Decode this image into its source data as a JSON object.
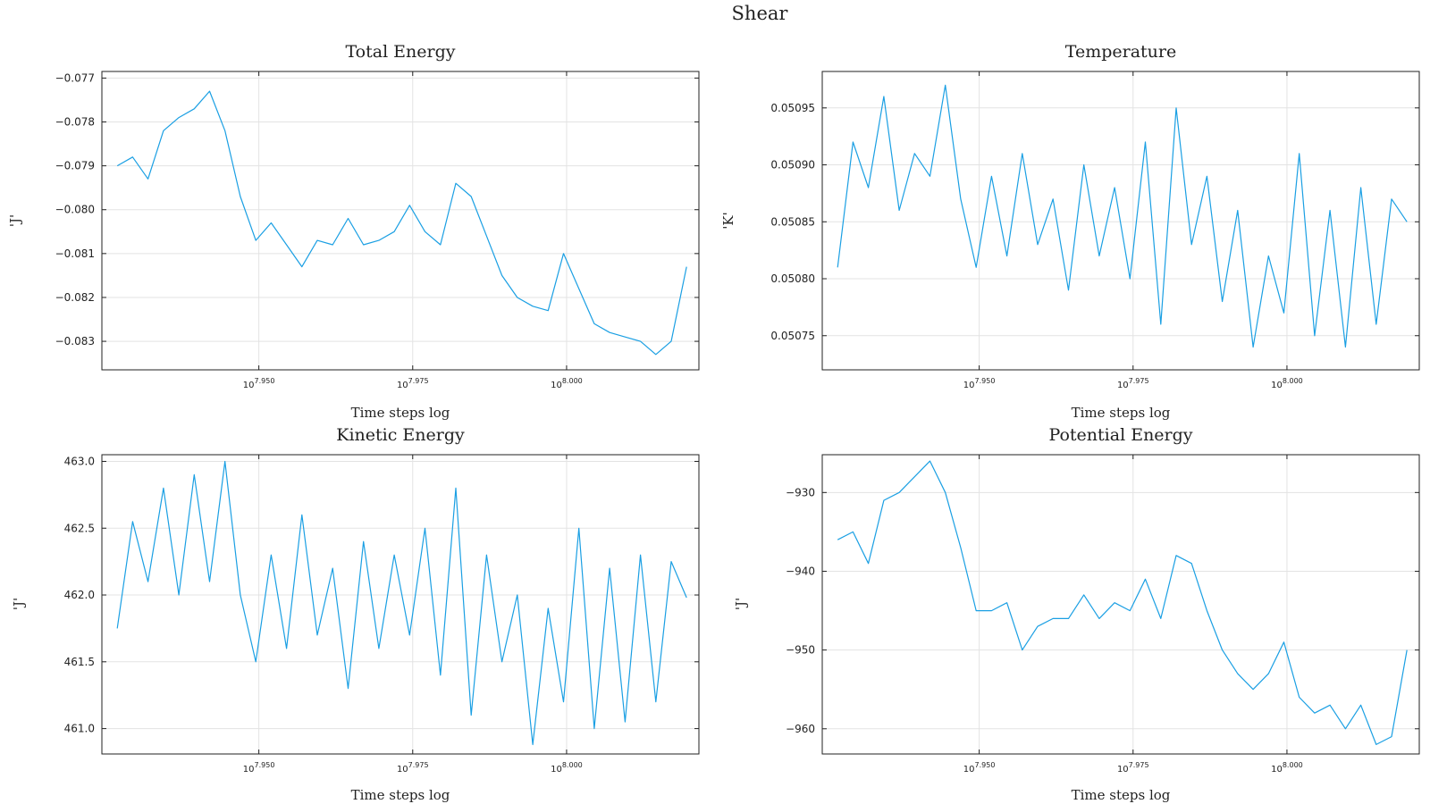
{
  "figure": {
    "title": "Shear"
  },
  "colors": {
    "series": "#1a9fe3",
    "grid": "#e3e3e3",
    "frame": "#222222"
  },
  "chart_data": [
    {
      "type": "line",
      "title": "Total Energy",
      "xlabel": "Time steps log",
      "ylabel": "'J'",
      "x_scale": "log10",
      "x_tick_labels": [
        [
          "10",
          "7.950"
        ],
        [
          "10",
          "7.975"
        ],
        [
          "10",
          "8.000"
        ]
      ],
      "x_ticks_log10": [
        7.95,
        7.975,
        8.0
      ],
      "xlim_log10": [
        7.9245,
        8.0215
      ],
      "y_ticks": [
        -0.077,
        -0.078,
        -0.079,
        -0.08,
        -0.081,
        -0.082,
        -0.083
      ],
      "y_tick_labels": [
        "-0.077",
        "-0.078",
        "-0.079",
        "-0.080",
        "-0.081",
        "-0.082",
        "-0.083"
      ],
      "ylim": [
        -0.08365,
        -0.07685
      ],
      "grid": true,
      "series": [
        {
          "x_log10": [
            7.927,
            7.9295,
            7.932,
            7.9345,
            7.937,
            7.9395,
            7.942,
            7.9445,
            7.947,
            7.9495,
            7.952,
            7.9545,
            7.957,
            7.9595,
            7.962,
            7.9645,
            7.967,
            7.9695,
            7.972,
            7.9745,
            7.977,
            7.9795,
            7.982,
            7.9845,
            7.987,
            7.9895,
            7.992,
            7.9945,
            7.997,
            7.9995,
            8.002,
            8.0045,
            8.007,
            8.0095,
            8.012,
            8.0145,
            8.017,
            8.0195
          ],
          "y": [
            -0.079,
            -0.0788,
            -0.0793,
            -0.0782,
            -0.0779,
            -0.0777,
            -0.0773,
            -0.0782,
            -0.0797,
            -0.0807,
            -0.0803,
            -0.0808,
            -0.0813,
            -0.0807,
            -0.0808,
            -0.0802,
            -0.0808,
            -0.0807,
            -0.0805,
            -0.0799,
            -0.0805,
            -0.0808,
            -0.0794,
            -0.0797,
            -0.0806,
            -0.0815,
            -0.082,
            -0.0822,
            -0.0823,
            -0.081,
            -0.0818,
            -0.0826,
            -0.0828,
            -0.0829,
            -0.083,
            -0.0833,
            -0.083,
            -0.0813
          ]
        }
      ]
    },
    {
      "type": "line",
      "title": "Temperature",
      "xlabel": "Time steps log",
      "ylabel": "'K'",
      "x_scale": "log10",
      "x_tick_labels": [
        [
          "10",
          "7.950"
        ],
        [
          "10",
          "7.975"
        ],
        [
          "10",
          "8.000"
        ]
      ],
      "x_ticks_log10": [
        7.95,
        7.975,
        8.0
      ],
      "xlim_log10": [
        7.9245,
        8.0215
      ],
      "y_ticks": [
        0.05095,
        0.0509,
        0.05085,
        0.0508,
        0.05075
      ],
      "y_tick_labels": [
        "0.05095",
        "0.05090",
        "0.05085",
        "0.05080",
        "0.05075"
      ],
      "ylim": [
        0.05072,
        0.050982
      ],
      "grid": true,
      "series": [
        {
          "x_log10": [
            7.927,
            7.9295,
            7.932,
            7.9345,
            7.937,
            7.9395,
            7.942,
            7.9445,
            7.947,
            7.9495,
            7.952,
            7.9545,
            7.957,
            7.9595,
            7.962,
            7.9645,
            7.967,
            7.9695,
            7.972,
            7.9745,
            7.977,
            7.9795,
            7.982,
            7.9845,
            7.987,
            7.9895,
            7.992,
            7.9945,
            7.997,
            7.9995,
            8.002,
            8.0045,
            8.007,
            8.0095,
            8.012,
            8.0145,
            8.017,
            8.0195
          ],
          "y": [
            0.05081,
            0.05092,
            0.05088,
            0.05096,
            0.05086,
            0.05091,
            0.05089,
            0.05097,
            0.05087,
            0.05081,
            0.05089,
            0.05082,
            0.05091,
            0.05083,
            0.05087,
            0.05079,
            0.0509,
            0.05082,
            0.05088,
            0.0508,
            0.05092,
            0.05076,
            0.05095,
            0.05083,
            0.05089,
            0.05078,
            0.05086,
            0.05074,
            0.05082,
            0.05077,
            0.05091,
            0.05075,
            0.05086,
            0.05074,
            0.05088,
            0.05076,
            0.05087,
            0.05085
          ]
        }
      ]
    },
    {
      "type": "line",
      "title": "Kinetic Energy",
      "xlabel": "Time steps log",
      "ylabel": "'J'",
      "x_scale": "log10",
      "x_tick_labels": [
        [
          "10",
          "7.950"
        ],
        [
          "10",
          "7.975"
        ],
        [
          "10",
          "8.000"
        ]
      ],
      "x_ticks_log10": [
        7.95,
        7.975,
        8.0
      ],
      "xlim_log10": [
        7.9245,
        8.0215
      ],
      "y_ticks": [
        463.0,
        462.5,
        462.0,
        461.5,
        461.0
      ],
      "y_tick_labels": [
        "463.0",
        "462.5",
        "462.0",
        "461.5",
        "461.0"
      ],
      "ylim": [
        460.81,
        463.05
      ],
      "grid": true,
      "series": [
        {
          "x_log10": [
            7.927,
            7.9295,
            7.932,
            7.9345,
            7.937,
            7.9395,
            7.942,
            7.9445,
            7.947,
            7.9495,
            7.952,
            7.9545,
            7.957,
            7.9595,
            7.962,
            7.9645,
            7.967,
            7.9695,
            7.972,
            7.9745,
            7.977,
            7.9795,
            7.982,
            7.9845,
            7.987,
            7.9895,
            7.992,
            7.9945,
            7.997,
            7.9995,
            8.002,
            8.0045,
            8.007,
            8.0095,
            8.012,
            8.0145,
            8.017,
            8.0195
          ],
          "y": [
            461.75,
            462.55,
            462.1,
            462.8,
            462.0,
            462.9,
            462.1,
            463.0,
            462.0,
            461.5,
            462.3,
            461.6,
            462.6,
            461.7,
            462.2,
            461.3,
            462.4,
            461.6,
            462.3,
            461.7,
            462.5,
            461.4,
            462.8,
            461.1,
            462.3,
            461.5,
            462.0,
            460.88,
            461.9,
            461.2,
            462.5,
            461.0,
            462.2,
            461.05,
            462.3,
            461.2,
            462.25,
            461.98
          ]
        }
      ]
    },
    {
      "type": "line",
      "title": "Potential Energy",
      "xlabel": "Time steps log",
      "ylabel": "'J'",
      "x_scale": "log10",
      "x_tick_labels": [
        [
          "10",
          "7.950"
        ],
        [
          "10",
          "7.975"
        ],
        [
          "10",
          "8.000"
        ]
      ],
      "x_ticks_log10": [
        7.95,
        7.975,
        8.0
      ],
      "xlim_log10": [
        7.9245,
        8.0215
      ],
      "y_ticks": [
        -930,
        -940,
        -950,
        -960
      ],
      "y_tick_labels": [
        "-930",
        "-940",
        "-950",
        "-960"
      ],
      "ylim": [
        -963.2,
        -925.2
      ],
      "grid": true,
      "series": [
        {
          "x_log10": [
            7.927,
            7.9295,
            7.932,
            7.9345,
            7.937,
            7.9395,
            7.942,
            7.9445,
            7.947,
            7.9495,
            7.952,
            7.9545,
            7.957,
            7.9595,
            7.962,
            7.9645,
            7.967,
            7.9695,
            7.972,
            7.9745,
            7.977,
            7.9795,
            7.982,
            7.9845,
            7.987,
            7.9895,
            7.992,
            7.9945,
            7.997,
            7.9995,
            8.002,
            8.0045,
            8.007,
            8.0095,
            8.012,
            8.0145,
            8.017,
            8.0195
          ],
          "y": [
            -936,
            -935,
            -939,
            -931,
            -930,
            -928,
            -926,
            -930,
            -937,
            -945,
            -945,
            -944,
            -950,
            -947,
            -946,
            -946,
            -943,
            -946,
            -944,
            -945,
            -941,
            -946,
            -938,
            -939,
            -945,
            -950,
            -953,
            -955,
            -953,
            -949,
            -956,
            -958,
            -957,
            -960,
            -957,
            -962,
            -961,
            -950
          ]
        }
      ]
    }
  ]
}
